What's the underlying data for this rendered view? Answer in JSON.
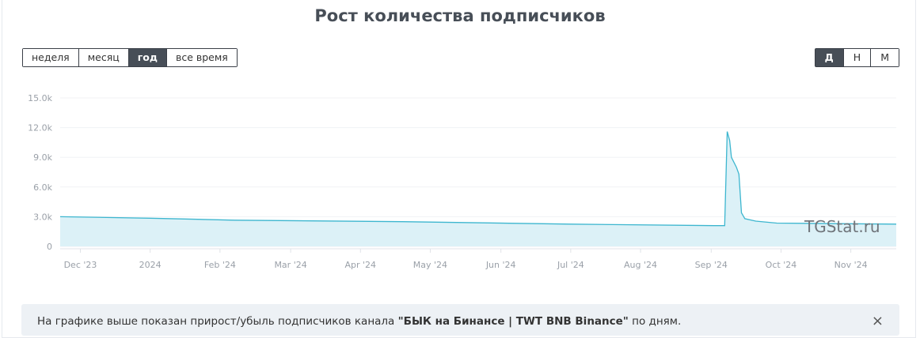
{
  "header": {
    "title": "Рост количества подписчиков"
  },
  "period_buttons": {
    "items": [
      "неделя",
      "месяц",
      "год",
      "все время"
    ],
    "active": 2
  },
  "scale_buttons": {
    "items": [
      "Д",
      "Н",
      "М"
    ],
    "active": 0
  },
  "chart_data": {
    "type": "line",
    "x": [
      2023.893,
      2024.0,
      2024.1,
      2024.3,
      2024.5,
      2024.67,
      2024.683,
      2024.686,
      2024.689,
      2024.691,
      2024.697,
      2024.7,
      2024.703,
      2024.707,
      2024.72,
      2024.745,
      2024.887
    ],
    "values": [
      3000,
      2850,
      2650,
      2500,
      2250,
      2100,
      2100,
      11600,
      10700,
      9000,
      8000,
      7300,
      3400,
      2800,
      2550,
      2350,
      2250
    ],
    "color": "#3db6cf",
    "fill_color": "#dcf1f7",
    "xlim": [
      2023.893,
      2024.887
    ],
    "xticks": [
      {
        "value": 2023.917,
        "label": "Dec '23"
      },
      2024,
      {
        "value": 2024.083,
        "label": "Feb '24"
      },
      {
        "value": 2024.167,
        "label": "Mar '24"
      },
      {
        "value": 2024.25,
        "label": "Apr '24"
      },
      {
        "value": 2024.333,
        "label": "May '24"
      },
      {
        "value": 2024.417,
        "label": "Jun '24"
      },
      {
        "value": 2024.5,
        "label": "Jul '24"
      },
      {
        "value": 2024.583,
        "label": "Aug '24"
      },
      {
        "value": 2024.667,
        "label": "Sep '24"
      },
      {
        "value": 2024.75,
        "label": "Oct '24"
      },
      {
        "value": 2024.833,
        "label": "Nov '24"
      }
    ],
    "ylim": [
      0,
      15000
    ],
    "yticks": [
      0,
      {
        "value": 3000,
        "label": "3.0k"
      },
      {
        "value": 6000,
        "label": "6.0k"
      },
      {
        "value": 9000,
        "label": "9.0k"
      },
      {
        "value": 12000,
        "label": "12.0k"
      },
      {
        "value": 15000,
        "label": "15.0k"
      }
    ],
    "grid": true,
    "watermark": "TGStat.ru"
  },
  "notice": {
    "text_before": "На графике выше показан прирост/убыль подписчиков канала ",
    "channel": "\"БЫК на Бинансе | TWT BNB Binance\"",
    "text_after": " по дням.",
    "close": "×"
  }
}
